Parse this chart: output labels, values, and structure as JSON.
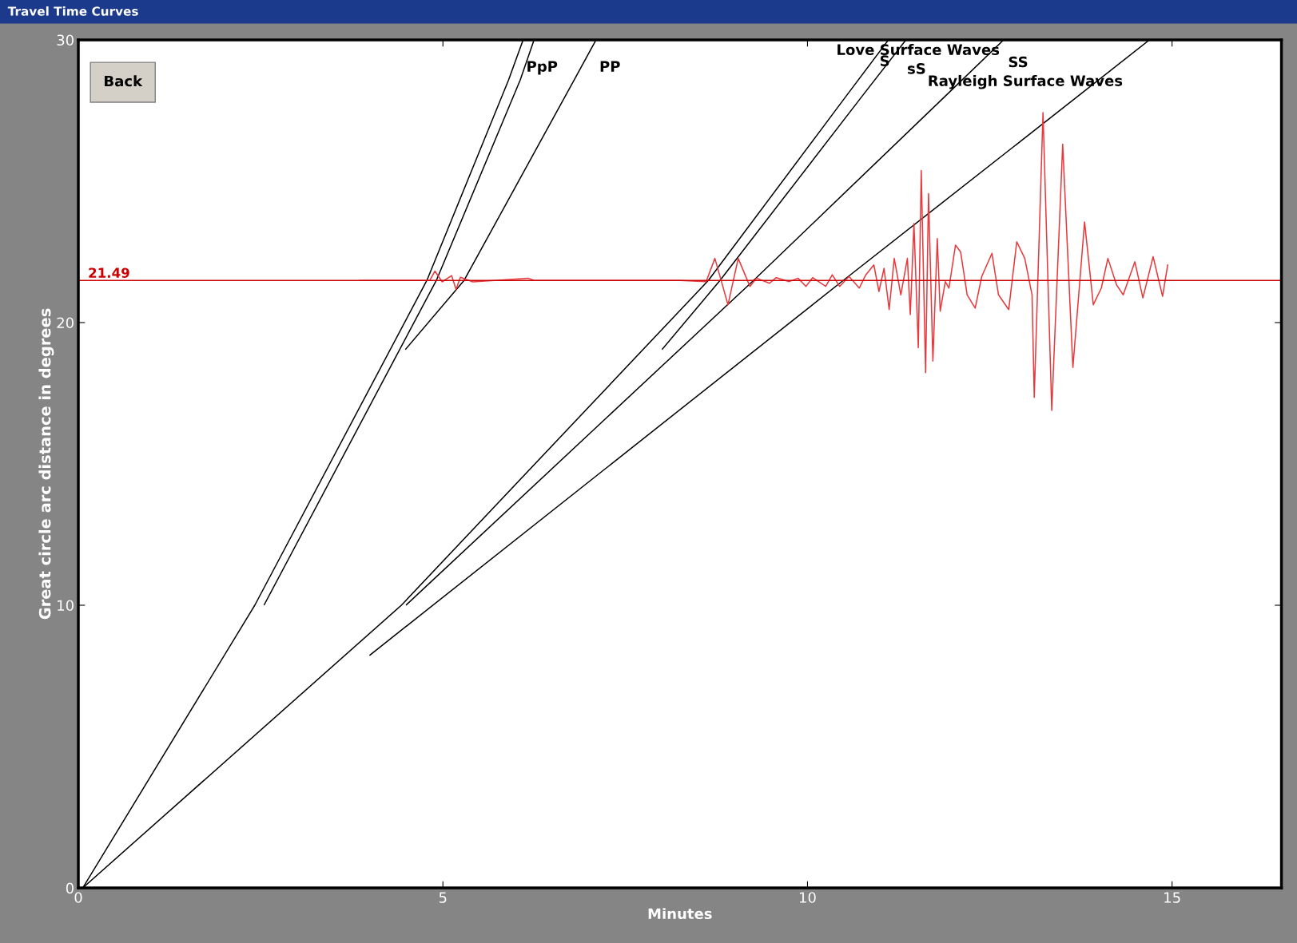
{
  "chart_data": {
    "type": "line",
    "title": "Travel Time Curves",
    "xlabel": "Minutes",
    "ylabel": "Great circle arc distance in degrees",
    "xlim": [
      0,
      16.5
    ],
    "ylim": [
      0,
      30
    ],
    "xticks": [
      0,
      5,
      10,
      15
    ],
    "yticks": [
      0,
      10,
      20,
      30
    ],
    "grid": false,
    "marker": "none",
    "line_style": "solid",
    "series": [
      {
        "color": "#000000",
        "x": [
          0.06,
          2.42,
          4.78,
          5.9,
          6.1
        ],
        "values": [
          0,
          10,
          21.49,
          28.58,
          30
        ]
      },
      {
        "name": "PpP",
        "color": "#000000",
        "x": [
          2.55,
          4.91,
          6.06,
          6.25
        ],
        "values": [
          10.02,
          21.49,
          28.58,
          30
        ]
      },
      {
        "name": "PP",
        "color": "#000000",
        "x": [
          4.49,
          5.29,
          6.8,
          7.1
        ],
        "values": [
          19.06,
          21.49,
          28.58,
          30
        ]
      },
      {
        "name": "S",
        "color": "#000000",
        "x": [
          0.06,
          4.43,
          8.64,
          10.53,
          11.11
        ],
        "values": [
          0,
          10,
          21.49,
          28.01,
          30
        ]
      },
      {
        "name": "sS",
        "color": "#000000",
        "x": [
          8.01,
          8.8,
          10.75,
          11.35
        ],
        "values": [
          19.06,
          21.49,
          28.01,
          30
        ]
      },
      {
        "name": "SS",
        "color": "#000000",
        "x": [
          4.5,
          9.26,
          11.89,
          12.69
        ],
        "values": [
          10.02,
          21.49,
          28.01,
          30
        ]
      },
      {
        "name": "Rayleigh Surface Waves",
        "color": "#000000",
        "x": [
          4.0,
          10.49,
          13.71,
          14.69
        ],
        "values": [
          8.24,
          21.49,
          28.01,
          30
        ]
      },
      {
        "color": "#e8383c",
        "x": [
          3.86,
          4.82,
          4.89,
          4.99,
          5.12,
          5.18,
          5.24,
          5.41,
          6.17,
          6.25,
          8.25,
          8.61,
          8.73,
          8.82,
          8.91,
          9.05,
          9.21,
          9.3,
          9.48,
          9.57,
          9.75,
          9.87,
          9.98,
          10.07,
          10.25,
          10.34,
          10.44,
          10.57,
          10.71,
          10.8,
          10.91,
          10.98,
          11.05,
          11.12,
          11.19,
          11.28,
          11.37,
          11.41,
          11.46,
          11.52,
          11.56,
          11.62,
          11.66,
          11.72,
          11.78,
          11.82,
          11.89,
          11.94,
          12.03,
          12.1,
          12.19,
          12.3,
          12.39,
          12.53,
          12.62,
          12.76,
          12.87,
          12.98,
          13.08,
          13.11,
          13.23,
          13.35,
          13.5,
          13.64,
          13.8,
          13.92,
          14.03,
          14.12,
          14.24,
          14.33,
          14.49,
          14.6,
          14.74,
          14.87,
          14.94
        ],
        "values": [
          21.49,
          21.49,
          21.82,
          21.44,
          21.66,
          21.17,
          21.6,
          21.44,
          21.57,
          21.49,
          21.49,
          21.45,
          22.27,
          21.45,
          20.63,
          22.27,
          21.28,
          21.57,
          21.39,
          21.59,
          21.45,
          21.57,
          21.28,
          21.59,
          21.28,
          21.69,
          21.28,
          21.63,
          21.22,
          21.69,
          22.04,
          21.1,
          21.92,
          20.46,
          22.27,
          20.98,
          22.27,
          20.28,
          23.5,
          19.11,
          25.38,
          18.23,
          24.56,
          18.64,
          22.97,
          20.4,
          21.45,
          21.22,
          22.74,
          22.5,
          20.98,
          20.51,
          21.63,
          22.45,
          20.98,
          20.46,
          22.86,
          22.27,
          20.98,
          17.35,
          27.43,
          16.89,
          26.31,
          18.41,
          23.56,
          20.63,
          21.22,
          22.27,
          21.33,
          20.98,
          22.15,
          20.87,
          22.33,
          20.93,
          22.04
        ]
      }
    ],
    "ref_lines": [
      {
        "axis": "y",
        "value": 21.49,
        "label": "21.49",
        "color": "#cc0000"
      }
    ],
    "annotations": [
      "Back",
      "Love Surface Waves"
    ]
  }
}
